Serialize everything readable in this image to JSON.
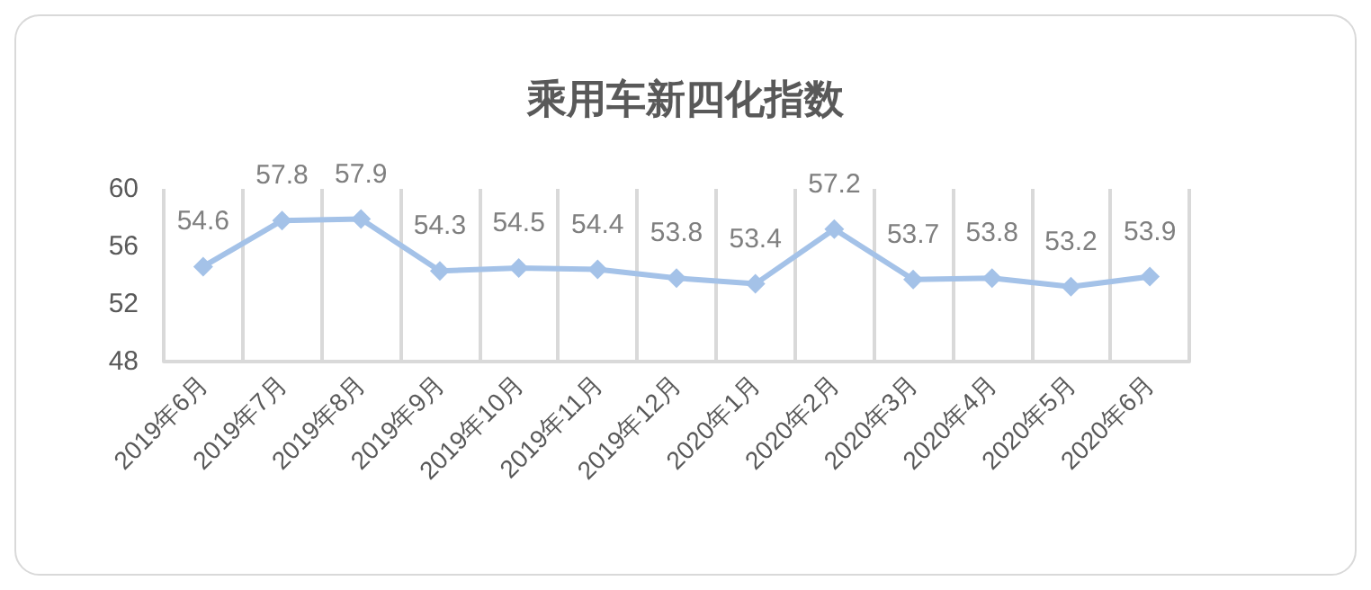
{
  "chart_data": {
    "type": "line",
    "title": "乘用车新四化指数",
    "categories": [
      "2019年6月",
      "2019年7月",
      "2019年8月",
      "2019年9月",
      "2019年10月",
      "2019年11月",
      "2019年12月",
      "2020年1月",
      "2020年2月",
      "2020年3月",
      "2020年4月",
      "2020年5月",
      "2020年6月"
    ],
    "series": [
      {
        "color": "#a4c2e8",
        "values": [
          54.6,
          57.8,
          57.9,
          54.3,
          54.5,
          54.4,
          53.8,
          53.4,
          57.2,
          53.7,
          53.8,
          53.2,
          53.9
        ]
      }
    ],
    "ylim": [
      48,
      60
    ],
    "yticks": [
      48,
      52,
      56,
      60
    ],
    "grid": "x",
    "marker": "diamond",
    "data_labels": true
  }
}
